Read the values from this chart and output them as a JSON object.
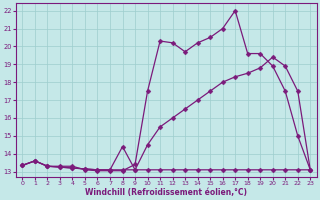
{
  "x": [
    0,
    1,
    2,
    3,
    4,
    5,
    6,
    7,
    8,
    9,
    10,
    11,
    12,
    13,
    14,
    15,
    16,
    17,
    18,
    19,
    20,
    21,
    22,
    23
  ],
  "line1": [
    13.35,
    13.6,
    13.3,
    13.3,
    13.3,
    13.1,
    13.05,
    13.05,
    13.05,
    13.4,
    17.5,
    20.3,
    20.2,
    19.7,
    20.2,
    20.5,
    21.0,
    22.0,
    19.6,
    19.6,
    18.9,
    17.5,
    15.0,
    13.1
  ],
  "line2": [
    13.35,
    13.6,
    13.3,
    13.25,
    13.2,
    13.15,
    13.1,
    13.1,
    13.1,
    13.1,
    14.5,
    15.5,
    16.0,
    16.5,
    17.0,
    17.5,
    18.0,
    18.3,
    18.5,
    18.8,
    19.4,
    18.9,
    17.5,
    13.1
  ],
  "line3": [
    13.35,
    13.6,
    13.3,
    13.25,
    13.2,
    13.15,
    13.1,
    13.1,
    14.4,
    13.1,
    13.1,
    13.1,
    13.1,
    13.1,
    13.1,
    13.1,
    13.1,
    13.1,
    13.1,
    13.1,
    13.1,
    13.1,
    13.1,
    13.1
  ],
  "line_color": "#7b1a7b",
  "bg_color": "#c5e8e8",
  "grid_color": "#9ecece",
  "xlabel": "Windchill (Refroidissement éolien,°C)",
  "xlim": [
    -0.5,
    23.5
  ],
  "ylim": [
    12.7,
    22.4
  ],
  "yticks": [
    13,
    14,
    15,
    16,
    17,
    18,
    19,
    20,
    21,
    22
  ],
  "xticks": [
    0,
    1,
    2,
    3,
    4,
    5,
    6,
    7,
    8,
    9,
    10,
    11,
    12,
    13,
    14,
    15,
    16,
    17,
    18,
    19,
    20,
    21,
    22,
    23
  ],
  "marker": "D",
  "markersize": 2.5,
  "linewidth": 0.9
}
